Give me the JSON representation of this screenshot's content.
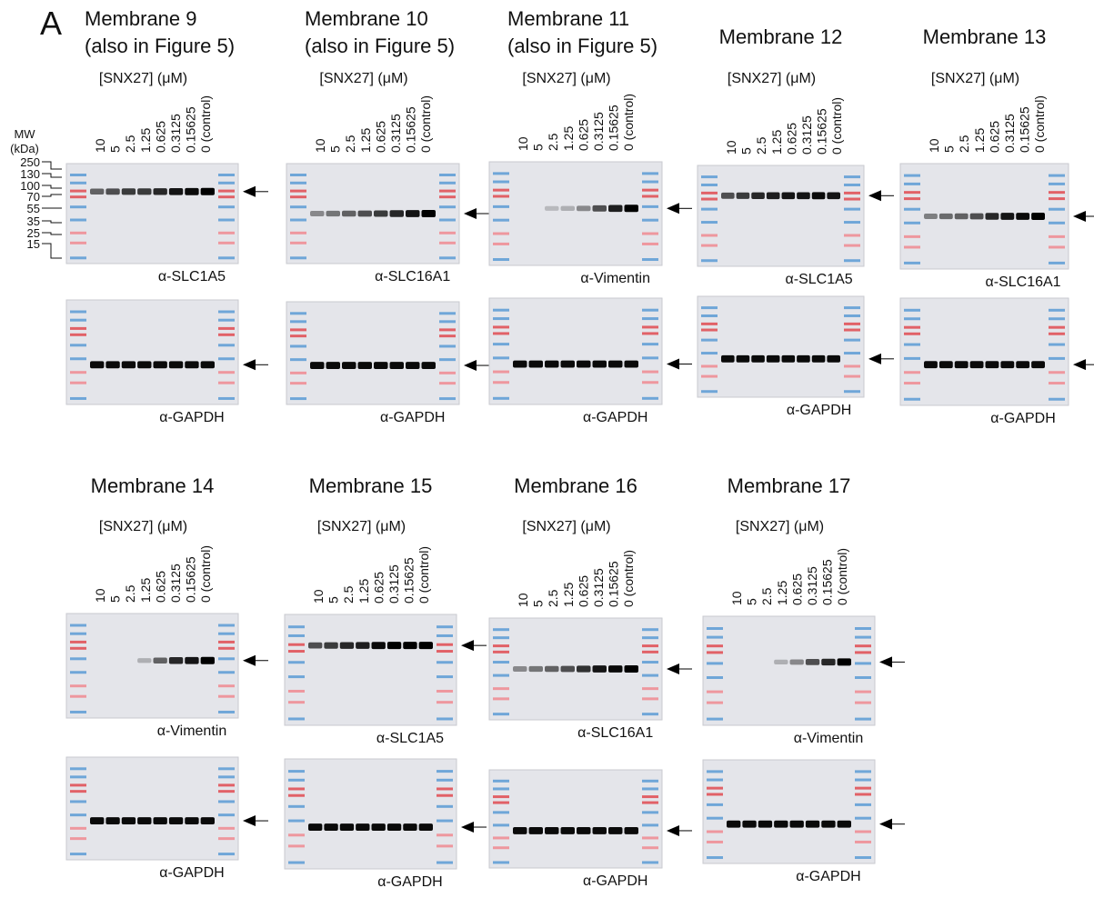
{
  "panel_label": "A",
  "mw_marker": {
    "title": [
      "MW",
      "(kDa)"
    ],
    "sizes": [
      "250",
      "130",
      "100",
      "70",
      "55",
      "35",
      "25",
      "15"
    ]
  },
  "membranes": [
    {
      "title": [
        "Membrane 9",
        "(also in Figure 5)"
      ],
      "concentration_label": "[SNX27] (μM)",
      "lanes": [
        "10",
        "5",
        "2.5",
        "1.25",
        "0.625",
        "0.3125",
        "0.15625",
        "0 (control)"
      ],
      "top_antibody": "α-SLC1A5",
      "bottom_antibody": "α-GAPDH"
    },
    {
      "title": [
        "Membrane 10",
        "(also in Figure 5)"
      ],
      "concentration_label": "[SNX27] (μM)",
      "lanes": [
        "10",
        "5",
        "2.5",
        "1.25",
        "0.625",
        "0.3125",
        "0.15625",
        "0 (control)"
      ],
      "top_antibody": "α-SLC16A1",
      "bottom_antibody": "α-GAPDH"
    },
    {
      "title": [
        "Membrane 11",
        "(also in Figure 5)"
      ],
      "concentration_label": "[SNX27] (μM)",
      "lanes": [
        "10",
        "5",
        "2.5",
        "1.25",
        "0.625",
        "0.3125",
        "0.15625",
        "0 (control)"
      ],
      "top_antibody": "α-Vimentin",
      "bottom_antibody": "α-GAPDH"
    },
    {
      "title": [
        "Membrane 12"
      ],
      "concentration_label": "[SNX27] (μM)",
      "lanes": [
        "10",
        "5",
        "2.5",
        "1.25",
        "0.625",
        "0.3125",
        "0.15625",
        "0 (control)"
      ],
      "top_antibody": "α-SLC1A5",
      "bottom_antibody": "α-GAPDH"
    },
    {
      "title": [
        "Membrane 13"
      ],
      "concentration_label": "[SNX27] (μM)",
      "lanes": [
        "10",
        "5",
        "2.5",
        "1.25",
        "0.625",
        "0.3125",
        "0.15625",
        "0 (control)"
      ],
      "top_antibody": "α-SLC16A1",
      "bottom_antibody": "α-GAPDH"
    },
    {
      "title": [
        "Membrane 14"
      ],
      "concentration_label": "[SNX27] (μM)",
      "lanes": [
        "10",
        "5",
        "2.5",
        "1.25",
        "0.625",
        "0.3125",
        "0.15625",
        "0 (control)"
      ],
      "top_antibody": "α-Vimentin",
      "bottom_antibody": "α-GAPDH"
    },
    {
      "title": [
        "Membrane 15"
      ],
      "concentration_label": "[SNX27] (μM)",
      "lanes": [
        "10",
        "5",
        "2.5",
        "1.25",
        "0.625",
        "0.3125",
        "0.15625",
        "0 (control)"
      ],
      "top_antibody": "α-SLC1A5",
      "bottom_antibody": "α-GAPDH"
    },
    {
      "title": [
        "Membrane 16"
      ],
      "concentration_label": "[SNX27] (μM)",
      "lanes": [
        "10",
        "5",
        "2.5",
        "1.25",
        "0.625",
        "0.3125",
        "0.15625",
        "0 (control)"
      ],
      "top_antibody": "α-SLC16A1",
      "bottom_antibody": "α-GAPDH"
    },
    {
      "title": [
        "Membrane 17"
      ],
      "concentration_label": "[SNX27] (μM)",
      "lanes": [
        "10",
        "5",
        "2.5",
        "1.25",
        "0.625",
        "0.3125",
        "0.15625",
        "0 (control)"
      ],
      "top_antibody": "α-Vimentin",
      "bottom_antibody": "α-GAPDH"
    }
  ]
}
